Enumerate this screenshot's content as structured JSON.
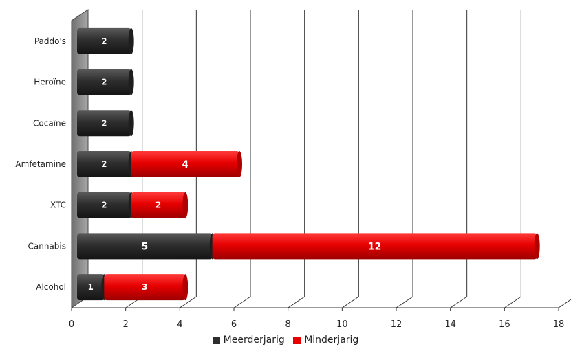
{
  "chart_data": {
    "type": "bar",
    "orientation": "horizontal",
    "stacked": true,
    "categories": [
      "Paddo's",
      "Heroïne",
      "Cocaïne",
      "Amfetamine",
      "XTC",
      "Cannabis",
      "Alcohol"
    ],
    "series": [
      {
        "name": "Meerderjarig",
        "color": "#2e2e2e",
        "values": [
          2,
          2,
          2,
          2,
          2,
          5,
          1
        ]
      },
      {
        "name": "Minderjarig",
        "color": "#e60000",
        "values": [
          0,
          0,
          0,
          4,
          2,
          12,
          3
        ]
      }
    ],
    "x_ticks": [
      "0",
      "2",
      "4",
      "6",
      "8",
      "10",
      "12",
      "14",
      "16",
      "18"
    ],
    "xlim": [
      0,
      18
    ],
    "grid": true,
    "legend_position": "bottom"
  }
}
